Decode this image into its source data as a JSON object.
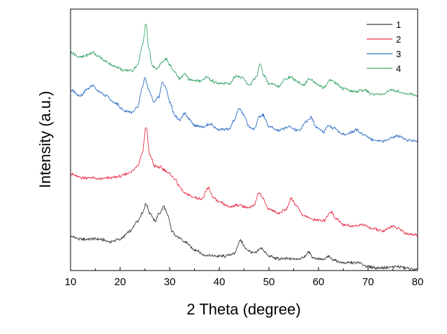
{
  "chart_data": {
    "type": "line",
    "title": "",
    "xlabel": "2 Theta (degree)",
    "ylabel": "Intensity (a.u.)",
    "xlim": [
      10,
      80
    ],
    "ylim": [
      0,
      100
    ],
    "xticks": [
      10,
      20,
      30,
      40,
      50,
      60,
      70,
      80
    ],
    "x_tick_labels": [
      "10",
      "20",
      "30",
      "40",
      "50",
      "60",
      "70",
      "80"
    ],
    "y_ticks_visible": false,
    "grid": false,
    "legend_position": "top-right",
    "series": [
      {
        "name": "1",
        "color": "#3a3a3a",
        "points": [
          [
            10,
            13.0
          ],
          [
            12,
            12.0
          ],
          [
            14,
            12.0
          ],
          [
            16,
            12.0
          ],
          [
            18,
            11.0
          ],
          [
            20,
            12.0
          ],
          [
            22,
            15.0
          ],
          [
            23.5,
            19.0
          ],
          [
            24.5,
            22.0
          ],
          [
            25.2,
            25.5
          ],
          [
            26,
            22.0
          ],
          [
            27,
            19.0
          ],
          [
            28,
            22.0
          ],
          [
            28.8,
            24.5
          ],
          [
            29.6,
            21.0
          ],
          [
            30.5,
            15.0
          ],
          [
            31.5,
            13.0
          ],
          [
            33,
            11.0
          ],
          [
            35,
            8.0
          ],
          [
            37,
            6.0
          ],
          [
            39,
            5.5
          ],
          [
            41,
            5.5
          ],
          [
            43,
            6.5
          ],
          [
            44.2,
            11.5
          ],
          [
            45.5,
            8.0
          ],
          [
            47,
            6.5
          ],
          [
            48.5,
            8.5
          ],
          [
            50,
            5.5
          ],
          [
            52,
            4.5
          ],
          [
            54,
            4.5
          ],
          [
            56,
            4.5
          ],
          [
            57,
            5.0
          ],
          [
            58,
            7.0
          ],
          [
            59,
            5.0
          ],
          [
            60,
            4.5
          ],
          [
            61,
            4.0
          ],
          [
            62,
            5.5
          ],
          [
            63,
            4.0
          ],
          [
            65,
            3.0
          ],
          [
            67,
            3.0
          ],
          [
            68,
            3.0
          ],
          [
            70,
            1.5
          ],
          [
            72,
            1.0
          ],
          [
            74,
            1.2
          ],
          [
            76,
            1.5
          ],
          [
            78,
            0.8
          ],
          [
            80,
            0.3
          ]
        ]
      },
      {
        "name": "2",
        "color": "#e8334a",
        "points": [
          [
            10,
            37.0
          ],
          [
            12,
            35.5
          ],
          [
            14,
            35.5
          ],
          [
            16,
            35.0
          ],
          [
            18,
            35.5
          ],
          [
            20,
            36.0
          ],
          [
            22,
            37.5
          ],
          [
            23.5,
            40.0
          ],
          [
            24.5,
            45.0
          ],
          [
            25.2,
            55.0
          ],
          [
            26,
            44.0
          ],
          [
            27,
            40.0
          ],
          [
            28,
            39.5
          ],
          [
            29,
            38.5
          ],
          [
            30,
            37.0
          ],
          [
            31,
            35.0
          ],
          [
            32,
            32.0
          ],
          [
            33,
            29.5
          ],
          [
            35,
            28.0
          ],
          [
            36.5,
            27.5
          ],
          [
            37.8,
            31.5
          ],
          [
            38.8,
            28.0
          ],
          [
            40,
            26.0
          ],
          [
            42,
            24.5
          ],
          [
            44,
            25.0
          ],
          [
            46,
            24.0
          ],
          [
            47,
            25.0
          ],
          [
            48,
            30.0
          ],
          [
            48.8,
            27.5
          ],
          [
            50,
            23.5
          ],
          [
            52,
            22.0
          ],
          [
            53.5,
            23.5
          ],
          [
            54.5,
            27.5
          ],
          [
            55.5,
            25.0
          ],
          [
            57,
            21.0
          ],
          [
            59,
            19.5
          ],
          [
            61,
            19.0
          ],
          [
            62.5,
            22.5
          ],
          [
            63.5,
            20.0
          ],
          [
            65,
            17.5
          ],
          [
            67,
            17.0
          ],
          [
            69,
            17.5
          ],
          [
            71,
            16.0
          ],
          [
            73,
            15.0
          ],
          [
            75,
            17.0
          ],
          [
            76,
            16.0
          ],
          [
            78,
            14.0
          ],
          [
            80,
            13.5
          ]
        ]
      },
      {
        "name": "3",
        "color": "#2f6fc4",
        "points": [
          [
            10,
            69.0
          ],
          [
            12,
            67.0
          ],
          [
            13.5,
            69.5
          ],
          [
            14.5,
            71.0
          ],
          [
            15.5,
            68.5
          ],
          [
            17,
            67.0
          ],
          [
            19,
            64.0
          ],
          [
            21,
            61.0
          ],
          [
            22.5,
            60.5
          ],
          [
            23.5,
            62.5
          ],
          [
            24.5,
            70.0
          ],
          [
            25,
            73.5
          ],
          [
            25.8,
            69.0
          ],
          [
            26.8,
            64.5
          ],
          [
            27.8,
            66.5
          ],
          [
            28.5,
            72.0
          ],
          [
            29.2,
            70.0
          ],
          [
            30,
            64.5
          ],
          [
            31,
            59.5
          ],
          [
            32,
            57.5
          ],
          [
            33,
            60.0
          ],
          [
            34,
            58.0
          ],
          [
            35,
            55.5
          ],
          [
            37,
            55.0
          ],
          [
            38,
            56.0
          ],
          [
            40,
            54.0
          ],
          [
            42,
            54.0
          ],
          [
            43,
            57.5
          ],
          [
            44,
            62.0
          ],
          [
            45,
            59.5
          ],
          [
            46,
            55.0
          ],
          [
            47,
            54.0
          ],
          [
            48,
            58.5
          ],
          [
            48.8,
            59.5
          ],
          [
            50,
            55.0
          ],
          [
            52,
            53.5
          ],
          [
            54,
            55.0
          ],
          [
            56,
            53.5
          ],
          [
            57.5,
            57.0
          ],
          [
            58.5,
            58.5
          ],
          [
            59.5,
            55.0
          ],
          [
            61,
            53.0
          ],
          [
            62,
            55.5
          ],
          [
            63,
            54.5
          ],
          [
            65,
            52.0
          ],
          [
            67,
            53.0
          ],
          [
            67.5,
            54.0
          ],
          [
            69,
            52.0
          ],
          [
            71,
            50.0
          ],
          [
            73,
            49.5
          ],
          [
            75,
            51.0
          ],
          [
            76,
            51.5
          ],
          [
            78,
            50.0
          ],
          [
            80,
            49.5
          ]
        ]
      },
      {
        "name": "4",
        "color": "#3aa66b",
        "points": [
          [
            10,
            83.5
          ],
          [
            12,
            81.5
          ],
          [
            13.5,
            82.5
          ],
          [
            14.5,
            83.5
          ],
          [
            15.5,
            82.0
          ],
          [
            17,
            80.0
          ],
          [
            19,
            78.0
          ],
          [
            21,
            76.5
          ],
          [
            22.5,
            76.5
          ],
          [
            23.5,
            78.5
          ],
          [
            24.5,
            86.0
          ],
          [
            25.2,
            94.5
          ],
          [
            25.8,
            85.0
          ],
          [
            26.5,
            78.0
          ],
          [
            27.5,
            77.0
          ],
          [
            28.3,
            79.5
          ],
          [
            29.2,
            81.0
          ],
          [
            30,
            78.5
          ],
          [
            31,
            76.0
          ],
          [
            32,
            73.5
          ],
          [
            33,
            75.0
          ],
          [
            34,
            73.0
          ],
          [
            36,
            72.5
          ],
          [
            37.5,
            74.0
          ],
          [
            38.5,
            72.5
          ],
          [
            40,
            71.5
          ],
          [
            42,
            71.5
          ],
          [
            43.5,
            74.5
          ],
          [
            44.5,
            74.0
          ],
          [
            46,
            71.0
          ],
          [
            47.5,
            74.0
          ],
          [
            48.2,
            79.0
          ],
          [
            49,
            74.5
          ],
          [
            50,
            71.5
          ],
          [
            52,
            70.5
          ],
          [
            53.5,
            73.5
          ],
          [
            54.5,
            74.0
          ],
          [
            55.5,
            72.5
          ],
          [
            57,
            71.0
          ],
          [
            58.3,
            73.5
          ],
          [
            59.5,
            71.5
          ],
          [
            61,
            70.0
          ],
          [
            62.5,
            73.0
          ],
          [
            63.5,
            71.5
          ],
          [
            65,
            69.5
          ],
          [
            67,
            68.5
          ],
          [
            69,
            69.0
          ],
          [
            71,
            67.5
          ],
          [
            73,
            67.5
          ],
          [
            75,
            69.0
          ],
          [
            76,
            68.5
          ],
          [
            78,
            67.5
          ],
          [
            80,
            67.0
          ]
        ]
      }
    ]
  }
}
